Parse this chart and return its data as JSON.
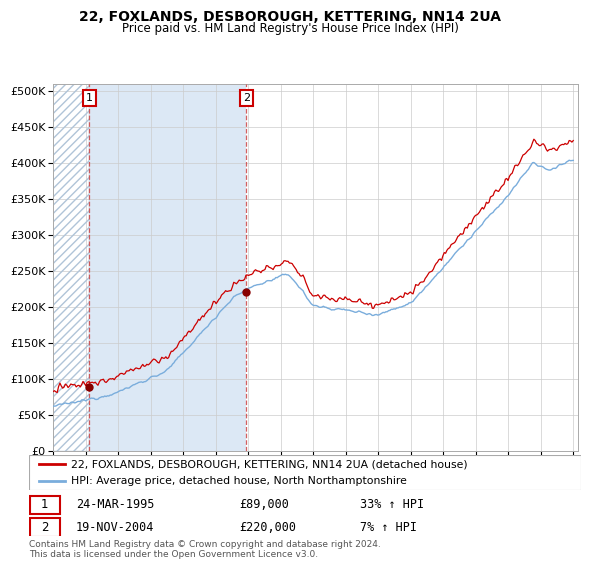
{
  "title1": "22, FOXLANDS, DESBOROUGH, KETTERING, NN14 2UA",
  "title2": "Price paid vs. HM Land Registry's House Price Index (HPI)",
  "sale1_date": "24-MAR-1995",
  "sale1_price": 89000,
  "sale1_hpi_pct": "33%",
  "sale2_date": "19-NOV-2004",
  "sale2_price": 220000,
  "sale2_hpi_pct": "7%",
  "legend1": "22, FOXLANDS, DESBOROUGH, KETTERING, NN14 2UA (detached house)",
  "legend2": "HPI: Average price, detached house, North Northamptonshire",
  "footer": "Contains HM Land Registry data © Crown copyright and database right 2024.\nThis data is licensed under the Open Government Licence v3.0.",
  "sale1_x": 1995.22,
  "sale2_x": 2004.89,
  "line_color_red": "#cc0000",
  "line_color_blue": "#7aaddc",
  "vline_color": "#cc4444",
  "dot_color": "#880000",
  "bg_blue_color": "#dce8f5",
  "hatch_color": "#b0c4d8",
  "ylim_max": 510000,
  "ylim_min": 0,
  "yticks": [
    0,
    50000,
    100000,
    150000,
    200000,
    250000,
    300000,
    350000,
    400000,
    450000,
    500000
  ],
  "xtick_start": 1993,
  "xtick_end": 2025,
  "xtick_step": 2
}
